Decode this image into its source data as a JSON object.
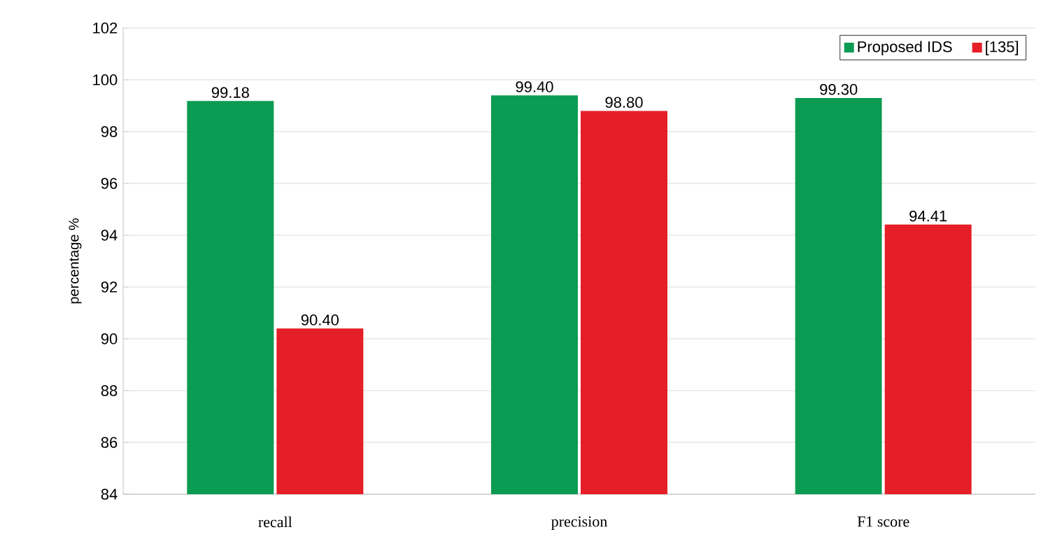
{
  "chart_data": {
    "type": "bar",
    "ylabel": "percentage %",
    "categories": [
      "recall",
      "precision",
      "F1 score"
    ],
    "series": [
      {
        "name": "Proposed IDS",
        "color": "#0c9b52",
        "values": [
          99.18,
          99.4,
          99.3
        ],
        "value_labels": [
          "99.18",
          "99.40",
          "99.30"
        ]
      },
      {
        "name": "[135]",
        "color": "#e51e27",
        "values": [
          90.4,
          98.8,
          94.41
        ],
        "value_labels": [
          "90.40",
          "98.80",
          "94.41"
        ]
      }
    ],
    "ylim": [
      84,
      102
    ],
    "yticks": [
      84,
      86,
      88,
      90,
      92,
      94,
      96,
      98,
      100,
      102
    ],
    "grid": "y",
    "legend": "top right"
  }
}
